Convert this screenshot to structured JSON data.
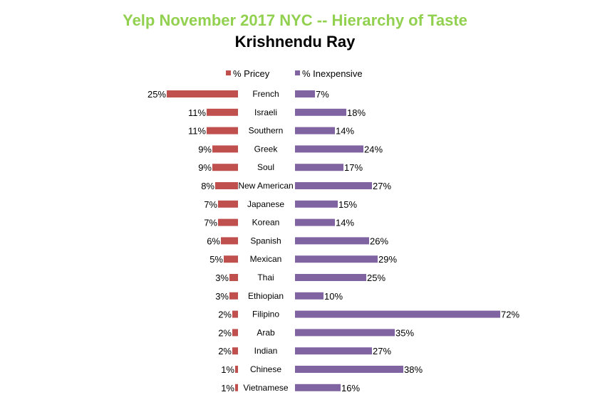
{
  "chart_data": {
    "type": "bar",
    "orientation": "horizontal",
    "title": "Yelp November 2017 NYC -- Hierarchy of Taste",
    "subtitle": "Krishnendu Ray",
    "legend_position": "top",
    "grid": false,
    "categories": [
      "French",
      "Israeli",
      "Southern",
      "Greek",
      "Soul",
      "New American",
      "Japanese",
      "Korean",
      "Spanish",
      "Mexican",
      "Thai",
      "Ethiopian",
      "Filipino",
      "Arab",
      "Indian",
      "Chinese",
      "Vietnamese"
    ],
    "series": [
      {
        "name": "% Pricey",
        "color": "#c0504d",
        "values": [
          25,
          11,
          11,
          9,
          9,
          8,
          7,
          7,
          6,
          5,
          3,
          3,
          2,
          2,
          2,
          1,
          1
        ],
        "labels": [
          "25%",
          "11%",
          "11%",
          "9%",
          "9%",
          "8%",
          "7%",
          "7%",
          "6%",
          "5%",
          "3%",
          "3%",
          "2%",
          "2%",
          "2%",
          "1%",
          "1%"
        ]
      },
      {
        "name": "% Inexpensive",
        "color": "#8064a2",
        "values": [
          7,
          18,
          14,
          24,
          17,
          27,
          15,
          14,
          26,
          29,
          25,
          10,
          72,
          35,
          27,
          38,
          16
        ],
        "labels": [
          "7%",
          "18%",
          "14%",
          "24%",
          "17%",
          "27%",
          "15%",
          "14%",
          "26%",
          "29%",
          "25%",
          "10%",
          "72%",
          "35%",
          "27%",
          "38%",
          "16%"
        ]
      }
    ]
  }
}
